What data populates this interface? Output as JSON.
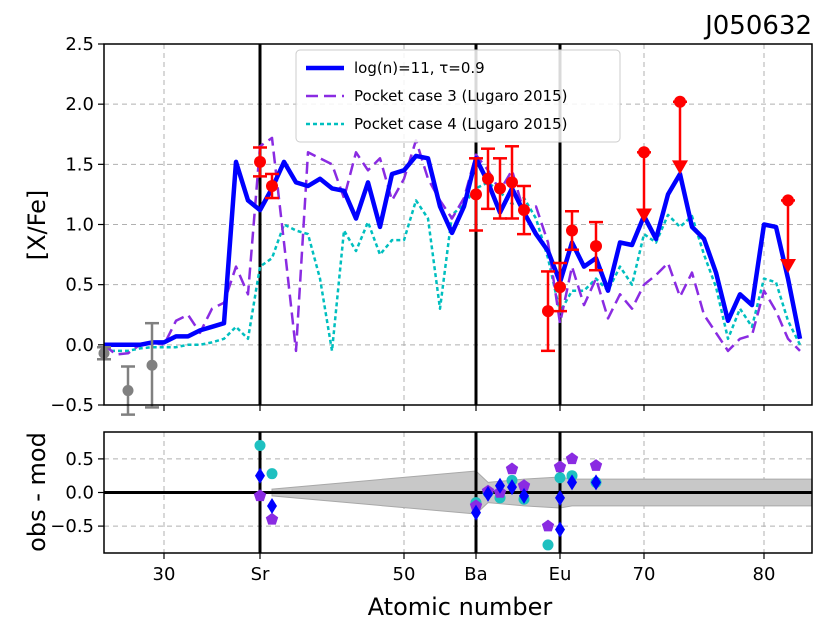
{
  "chart_data": [
    {
      "type": "line",
      "title": "J050632",
      "xlabel": "",
      "ylabel": "[X/Fe]",
      "xlim": [
        25,
        84
      ],
      "ylim": [
        -0.5,
        2.5
      ],
      "yticks": [
        -0.5,
        0.0,
        0.5,
        1.0,
        1.5,
        2.0,
        2.5
      ],
      "ytick_labels": [
        "−0.5",
        "0.0",
        "0.5",
        "1.0",
        "1.5",
        "2.0",
        "2.5"
      ],
      "grid": true,
      "legend_position": "top-center",
      "vlines": [
        38,
        56,
        63
      ],
      "series": [
        {
          "name": "log(n)=11, τ=0.9",
          "style": "solid",
          "color": "#0000ff",
          "x": [
            25,
            26,
            27,
            28,
            29,
            30,
            31,
            32,
            33,
            34,
            35,
            36,
            37,
            38,
            39,
            40,
            41,
            42,
            43,
            44,
            45,
            46,
            47,
            48,
            49,
            50,
            51,
            52,
            53,
            54,
            55,
            56,
            57,
            58,
            59,
            60,
            61,
            62,
            63,
            64,
            65,
            66,
            67,
            68,
            69,
            70,
            71,
            72,
            73,
            74,
            75,
            76,
            77,
            78,
            79,
            80,
            81,
            82,
            83
          ],
          "y": [
            0.0,
            0.0,
            0.0,
            0.0,
            0.02,
            0.02,
            0.07,
            0.07,
            0.12,
            0.15,
            0.18,
            1.52,
            1.2,
            1.12,
            1.3,
            1.52,
            1.35,
            1.32,
            1.38,
            1.3,
            1.28,
            1.05,
            1.35,
            0.98,
            1.42,
            1.45,
            1.57,
            1.55,
            1.15,
            0.93,
            1.15,
            1.55,
            1.35,
            1.1,
            1.3,
            1.1,
            0.92,
            0.78,
            0.52,
            0.85,
            0.65,
            0.72,
            0.45,
            0.85,
            0.83,
            1.07,
            0.88,
            1.25,
            1.42,
            0.98,
            0.88,
            0.6,
            0.2,
            0.42,
            0.33,
            1.0,
            0.98,
            0.55,
            0.05
          ]
        },
        {
          "name": "Pocket case 3 (Lugaro 2015)",
          "style": "dashed",
          "color": "#8a2be2",
          "x": [
            25,
            26,
            27,
            28,
            29,
            30,
            31,
            32,
            33,
            34,
            35,
            36,
            37,
            38,
            39,
            40,
            41,
            42,
            43,
            44,
            45,
            46,
            47,
            48,
            49,
            50,
            51,
            52,
            53,
            54,
            55,
            56,
            57,
            58,
            59,
            60,
            61,
            62,
            63,
            64,
            65,
            66,
            67,
            68,
            69,
            70,
            71,
            72,
            73,
            74,
            75,
            76,
            77,
            78,
            79,
            80,
            81,
            82,
            83
          ],
          "y": [
            0.0,
            -0.08,
            -0.07,
            0.0,
            0.02,
            0.0,
            0.2,
            0.25,
            0.1,
            0.3,
            0.35,
            0.65,
            0.42,
            1.65,
            1.72,
            0.85,
            -0.05,
            1.6,
            1.55,
            1.5,
            1.22,
            1.6,
            1.45,
            1.55,
            1.2,
            1.38,
            1.7,
            1.38,
            1.2,
            1.05,
            1.22,
            1.58,
            1.45,
            1.28,
            1.45,
            1.1,
            1.15,
            0.85,
            0.18,
            0.65,
            0.33,
            0.55,
            0.22,
            0.42,
            0.3,
            0.5,
            0.58,
            0.68,
            0.4,
            0.6,
            0.25,
            0.1,
            -0.05,
            0.05,
            0.08,
            0.45,
            0.28,
            0.05,
            -0.05
          ]
        },
        {
          "name": "Pocket case 4 (Lugaro 2015)",
          "style": "dotted",
          "color": "#00bfbf",
          "x": [
            25,
            26,
            27,
            28,
            29,
            30,
            31,
            32,
            33,
            34,
            35,
            36,
            37,
            38,
            39,
            40,
            41,
            42,
            43,
            44,
            45,
            46,
            47,
            48,
            49,
            50,
            51,
            52,
            53,
            54,
            55,
            56,
            57,
            58,
            59,
            60,
            61,
            62,
            63,
            64,
            65,
            66,
            67,
            68,
            69,
            70,
            71,
            72,
            73,
            74,
            75,
            76,
            77,
            78,
            79,
            80,
            81,
            82,
            83
          ],
          "y": [
            -0.05,
            -0.05,
            -0.05,
            -0.03,
            -0.02,
            -0.02,
            -0.02,
            0.0,
            0.0,
            0.02,
            0.05,
            0.15,
            0.05,
            0.65,
            0.72,
            1.0,
            0.95,
            0.92,
            0.55,
            -0.05,
            0.95,
            0.78,
            1.02,
            0.75,
            0.87,
            0.87,
            1.2,
            1.05,
            0.3,
            1.08,
            1.17,
            1.3,
            1.35,
            1.27,
            1.17,
            1.22,
            1.05,
            0.72,
            0.27,
            0.45,
            0.45,
            0.55,
            0.45,
            0.65,
            0.5,
            0.92,
            0.85,
            1.08,
            0.98,
            1.07,
            0.75,
            0.48,
            0.05,
            0.3,
            0.15,
            0.55,
            0.52,
            0.2,
            0.0
          ]
        }
      ],
      "observations": {
        "color_detection": "#ff0000",
        "color_limit": "#808080",
        "points": [
          {
            "x": 38,
            "y": 1.52,
            "err": 0.12
          },
          {
            "x": 39,
            "y": 1.32,
            "err": 0.1
          },
          {
            "x": 56,
            "y": 1.25,
            "err": 0.3
          },
          {
            "x": 57,
            "y": 1.38,
            "err": 0.25
          },
          {
            "x": 58,
            "y": 1.3,
            "err": 0.25
          },
          {
            "x": 59,
            "y": 1.35,
            "err": 0.3
          },
          {
            "x": 60,
            "y": 1.12,
            "err": 0.2
          },
          {
            "x": 62,
            "y": 0.28,
            "err": 0.33
          },
          {
            "x": 63,
            "y": 0.48,
            "err": 0.2
          },
          {
            "x": 64,
            "y": 0.95,
            "err": 0.16
          },
          {
            "x": 66,
            "y": 0.82,
            "err": 0.2
          }
        ],
        "upper_limits": [
          {
            "x": 70,
            "from": 1.6,
            "to": 1.05
          },
          {
            "x": 73,
            "from": 2.02,
            "to": 1.45
          },
          {
            "x": 82,
            "from": 1.2,
            "to": 0.63
          }
        ],
        "gray_points": [
          {
            "x": 25,
            "y": -0.07,
            "err": 0.05
          },
          {
            "x": 27,
            "y": -0.38,
            "err": 0.2
          },
          {
            "x": 29,
            "y": -0.17,
            "err": 0.35
          }
        ]
      }
    },
    {
      "type": "scatter",
      "title": "",
      "xlabel": "Atomic number",
      "ylabel": "obs - mod",
      "xlim": [
        25,
        84
      ],
      "ylim": [
        -0.9,
        0.9
      ],
      "yticks": [
        -0.5,
        0.0,
        0.5
      ],
      "ytick_labels": [
        "−0.5",
        "0.0",
        "0.5"
      ],
      "xticks": [
        30,
        38,
        50,
        56,
        63,
        70,
        80
      ],
      "xtick_labels": [
        "30",
        "Sr",
        "50",
        "Ba",
        "Eu",
        "70",
        "80"
      ],
      "grid": true,
      "hline": 0,
      "band": {
        "color": "#c8c8c8",
        "x": [
          39,
          56,
          57,
          60,
          63,
          64,
          66,
          84
        ],
        "upper": [
          0.05,
          0.32,
          0.15,
          0.2,
          0.23,
          0.2,
          0.2,
          0.2
        ],
        "lower": [
          -0.05,
          -0.32,
          -0.15,
          -0.2,
          -0.23,
          -0.2,
          -0.2,
          -0.2
        ]
      },
      "series": [
        {
          "name": "log(n)=11, τ=0.9",
          "marker": "diamond",
          "color": "#0000ff",
          "points": [
            [
              38,
              0.25
            ],
            [
              39,
              -0.2
            ],
            [
              56,
              -0.3
            ],
            [
              57,
              -0.02
            ],
            [
              58,
              0.1
            ],
            [
              59,
              0.08
            ],
            [
              60,
              -0.05
            ],
            [
              63,
              -0.08
            ],
            [
              64,
              0.15
            ],
            [
              66,
              0.15
            ],
            [
              63,
              -0.55
            ]
          ]
        },
        {
          "name": "Pocket case 3 (Lugaro 2015)",
          "marker": "pentagon",
          "color": "#8a2be2",
          "points": [
            [
              38,
              -0.05
            ],
            [
              39,
              -0.4
            ],
            [
              56,
              -0.2
            ],
            [
              57,
              0.02
            ],
            [
              58,
              0.0
            ],
            [
              59,
              0.35
            ],
            [
              60,
              0.1
            ],
            [
              63,
              0.38
            ],
            [
              64,
              0.5
            ],
            [
              66,
              0.4
            ],
            [
              62,
              -0.5
            ]
          ]
        },
        {
          "name": "Pocket case 4 (Lugaro 2015)",
          "marker": "circle",
          "color": "#1ec0c0",
          "points": [
            [
              38,
              0.7
            ],
            [
              39,
              0.28
            ],
            [
              56,
              -0.15
            ],
            [
              57,
              0.0
            ],
            [
              58,
              -0.08
            ],
            [
              59,
              0.18
            ],
            [
              60,
              -0.1
            ],
            [
              62,
              -0.78
            ],
            [
              63,
              0.22
            ],
            [
              64,
              0.25
            ],
            [
              66,
              0.15
            ]
          ]
        }
      ]
    }
  ]
}
